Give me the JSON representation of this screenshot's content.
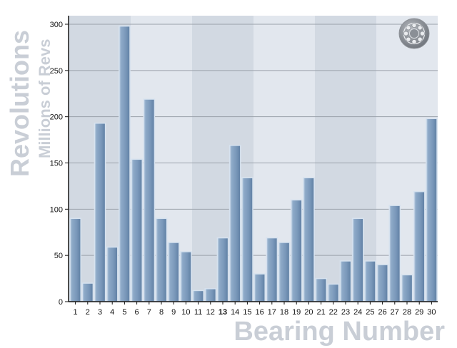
{
  "chart_data": {
    "type": "bar",
    "categories": [
      "1",
      "2",
      "3",
      "4",
      "5",
      "6",
      "7",
      "8",
      "9",
      "10",
      "11",
      "12",
      "13",
      "14",
      "15",
      "16",
      "17",
      "18",
      "19",
      "20",
      "21",
      "22",
      "23",
      "24",
      "25",
      "26",
      "27",
      "28",
      "29",
      "30"
    ],
    "highlight_category": "13",
    "values": [
      90,
      20,
      193,
      59,
      298,
      154,
      219,
      90,
      64,
      54,
      12,
      14,
      69,
      169,
      134,
      30,
      69,
      64,
      110,
      134,
      25,
      19,
      44,
      90,
      44,
      40,
      104,
      29,
      119,
      198
    ],
    "xlabel": "Bearing Number",
    "ylabel": "Revolutions",
    "ylabel_sub": "Millions of Revs",
    "ylim": [
      0,
      300
    ],
    "yticks": [
      "0",
      "50",
      "100",
      "150",
      "200",
      "250",
      "300"
    ],
    "grid": true,
    "colors": {
      "bar_fill": "#7f9cbc",
      "bar_edge": "#d6e2ef",
      "band_dark": "#d2d9e2",
      "band_light": "#e2e7ee",
      "gridline": "#9aa1aa",
      "axis_title": "#c9ced6"
    },
    "logo_icon": "bearing-icon"
  }
}
